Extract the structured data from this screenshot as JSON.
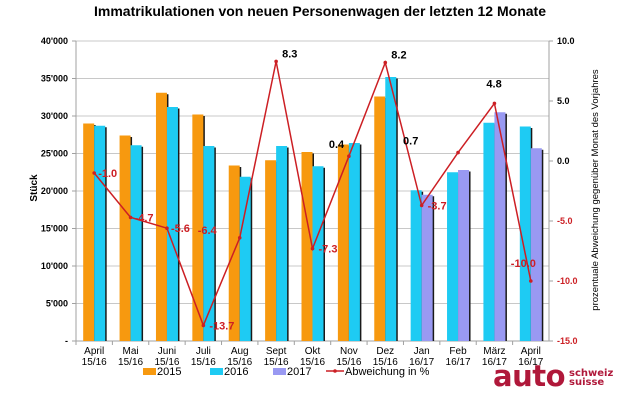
{
  "chart_data": {
    "type": "bar",
    "title": "Immatrikulationen von neuen Personenwagen der letzten 12 Monate",
    "ylabel": "Stück",
    "y2label": "prozentuale Abweichung gegenüber Monat des Vorjahres",
    "ylim": [
      0,
      40000
    ],
    "y2lim": [
      -15,
      10
    ],
    "yticks": [
      "-",
      "5'000",
      "10'000",
      "15'000",
      "20'000",
      "25'000",
      "30'000",
      "35'000",
      "40'000"
    ],
    "yticks_values": [
      0,
      5000,
      10000,
      15000,
      20000,
      25000,
      30000,
      35000,
      40000
    ],
    "y2ticks": [
      "-15.0",
      "-10.0",
      "-5.0",
      "0.0",
      "5.0",
      "10.0"
    ],
    "y2ticks_values": [
      -15,
      -10,
      -5,
      0,
      5,
      10
    ],
    "grid": true,
    "legend_position": "bottom",
    "categories": [
      [
        "April",
        "15/16"
      ],
      [
        "Mai",
        "15/16"
      ],
      [
        "Juni",
        "15/16"
      ],
      [
        "Juli",
        "15/16"
      ],
      [
        "Aug",
        "15/16"
      ],
      [
        "Sept",
        "15/16"
      ],
      [
        "Okt",
        "15/16"
      ],
      [
        "Nov",
        "15/16"
      ],
      [
        "Dez",
        "15/16"
      ],
      [
        "Jan",
        "16/17"
      ],
      [
        "Feb",
        "16/17"
      ],
      [
        "März",
        "16/17"
      ],
      [
        "April",
        "16/17"
      ]
    ],
    "series": [
      {
        "name": "2015",
        "color": "#f7990f",
        "values": [
          29000,
          27400,
          33100,
          30200,
          23400,
          24100,
          25200,
          26200,
          32600,
          null,
          null,
          null,
          null
        ]
      },
      {
        "name": "2016",
        "color": "#1ecbf3",
        "values": [
          28700,
          26100,
          31200,
          26000,
          21900,
          26000,
          23300,
          26400,
          35200,
          20100,
          22500,
          29100,
          28600
        ]
      },
      {
        "name": "2017",
        "color": "#9999f2",
        "values": [
          null,
          null,
          null,
          null,
          null,
          null,
          null,
          null,
          null,
          19500,
          22800,
          30500,
          25700
        ]
      }
    ],
    "line_series": {
      "name": "Abweichung in %",
      "color": "#cc1f24",
      "axis": "right",
      "values": [
        -1.0,
        -4.7,
        -5.6,
        -13.7,
        -6.4,
        8.3,
        -7.3,
        0.4,
        8.2,
        -3.7,
        0.7,
        4.8,
        -10.0
      ],
      "labels": [
        "-1.0",
        "-4.7",
        "-5.6",
        "-13.7",
        "-6.4",
        "8.3",
        "-7.3",
        "0.4",
        "8.2",
        "-3.7",
        "0.7",
        "4.8",
        "-10.0"
      ]
    }
  },
  "logo": {
    "main": "auto",
    "line1": "schweiz",
    "line2": "suisse"
  }
}
